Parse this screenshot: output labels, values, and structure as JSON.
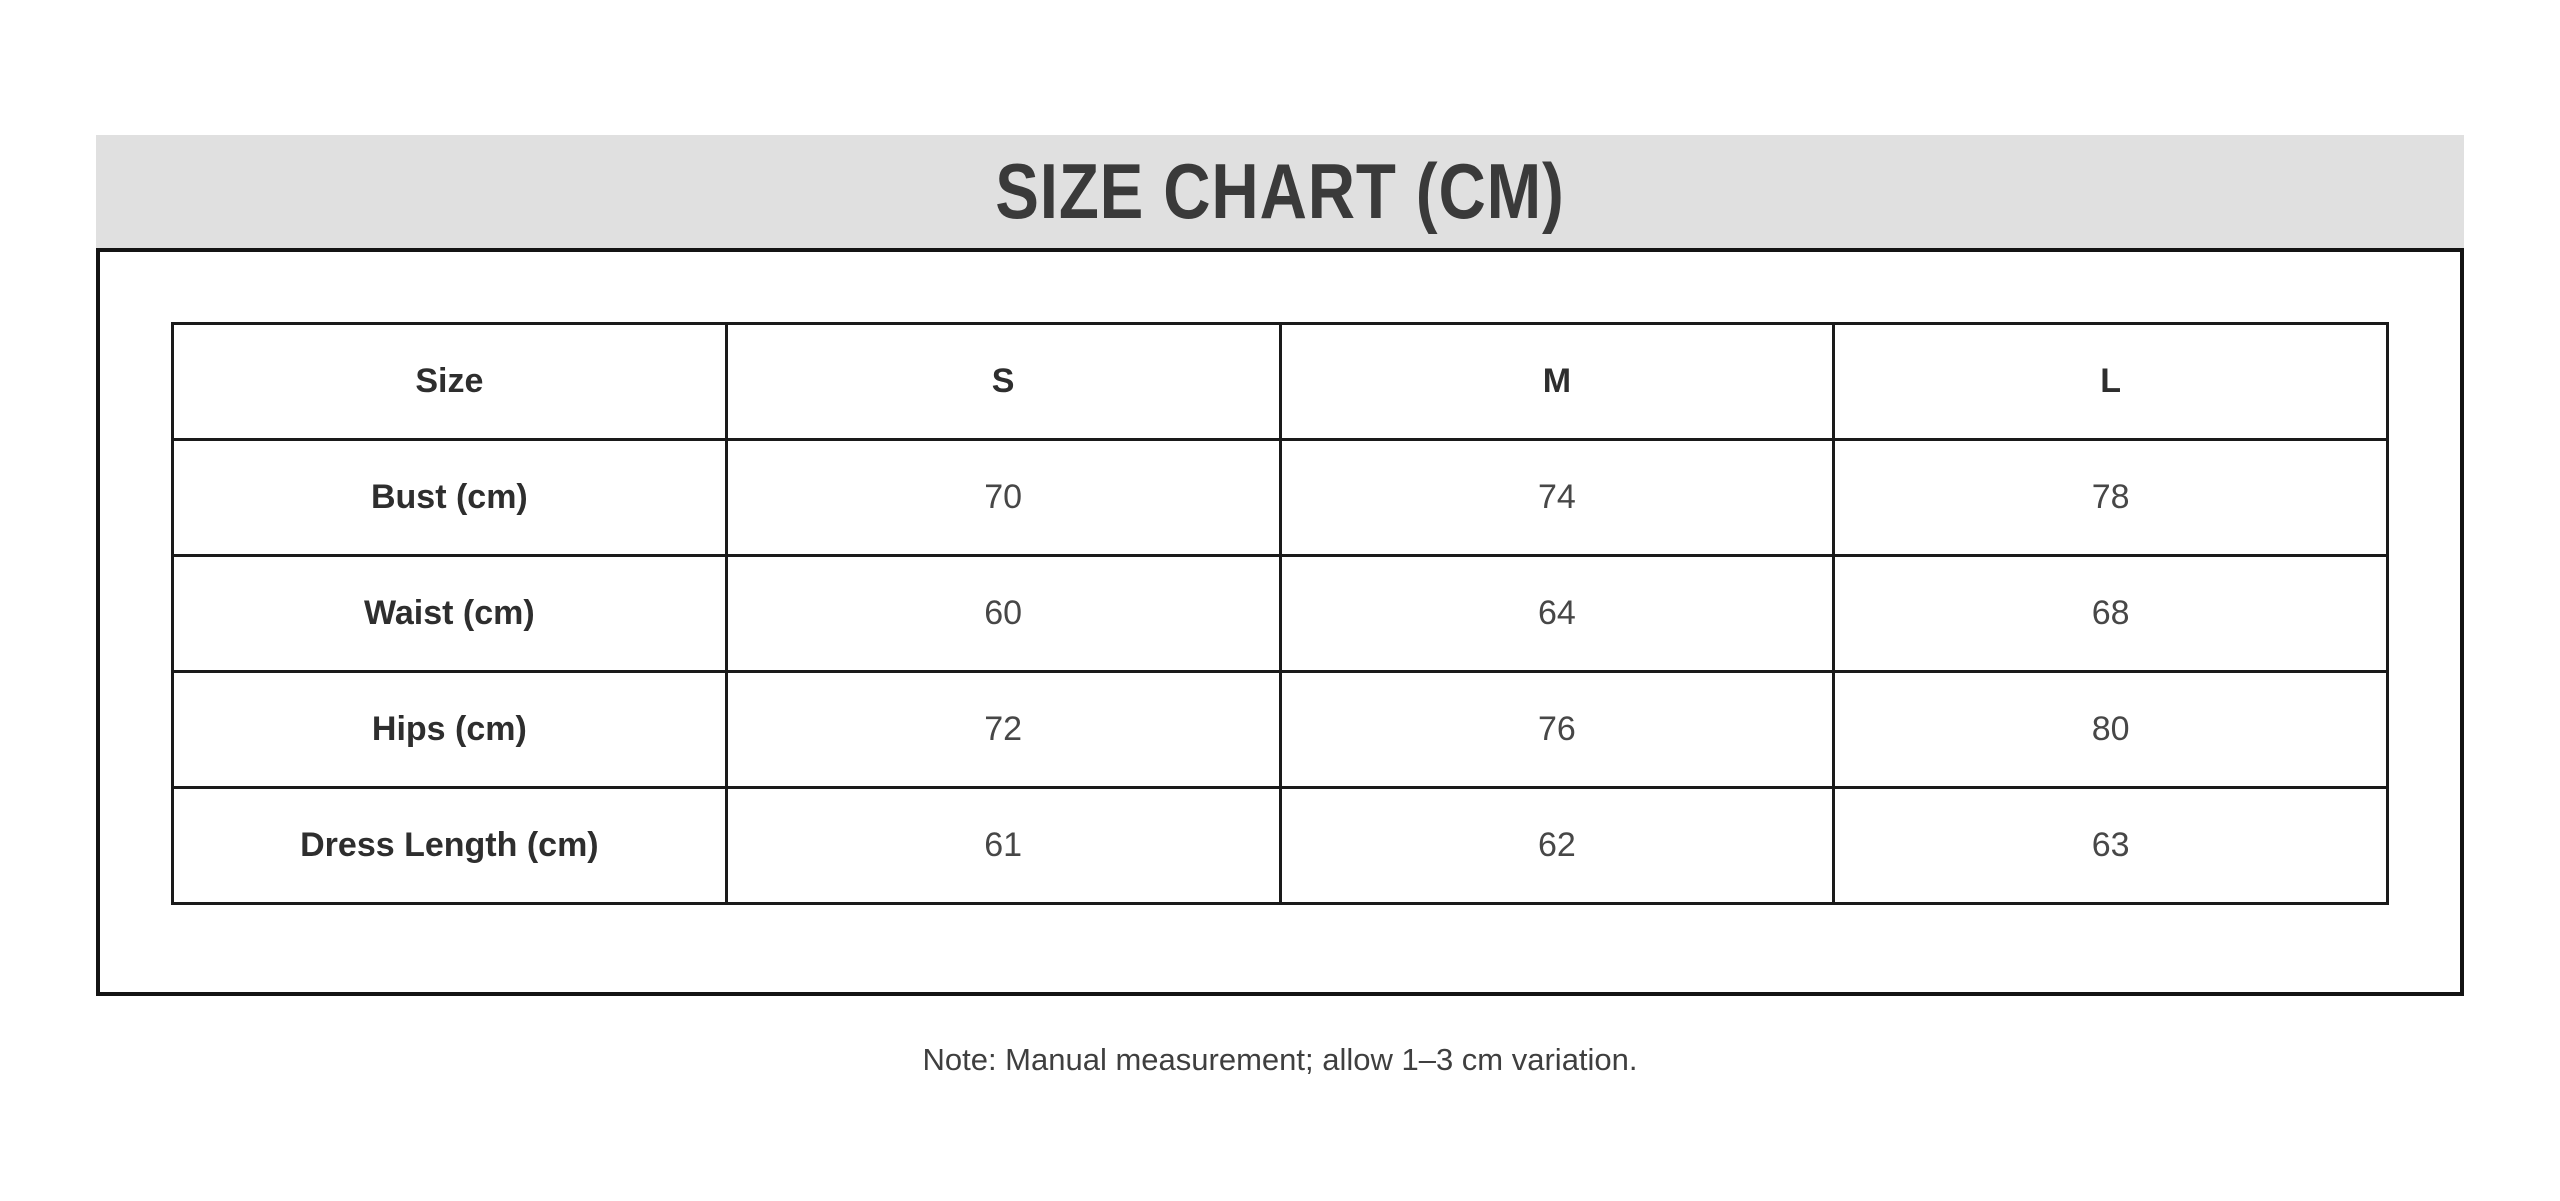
{
  "colors": {
    "page_background": "#ffffff",
    "banner_background": "#e0e0e0",
    "title_text": "#3a3a3a",
    "frame_border": "#141414",
    "table_border": "#1a1a1a",
    "header_text": "#2e2e2e",
    "value_text": "#474747"
  },
  "chart_data": {
    "type": "table",
    "title": "SIZE CHART (CM)",
    "columns": [
      "Size",
      "S",
      "M",
      "L"
    ],
    "rows": [
      {
        "label": "Bust (cm)",
        "values": [
          70,
          74,
          78
        ]
      },
      {
        "label": "Waist (cm)",
        "values": [
          60,
          64,
          68
        ]
      },
      {
        "label": "Hips (cm)",
        "values": [
          72,
          76,
          80
        ]
      },
      {
        "label": "Dress Length (cm)",
        "values": [
          61,
          62,
          63
        ]
      }
    ],
    "note": "Note: Manual measurement; allow 1–3 cm variation."
  }
}
